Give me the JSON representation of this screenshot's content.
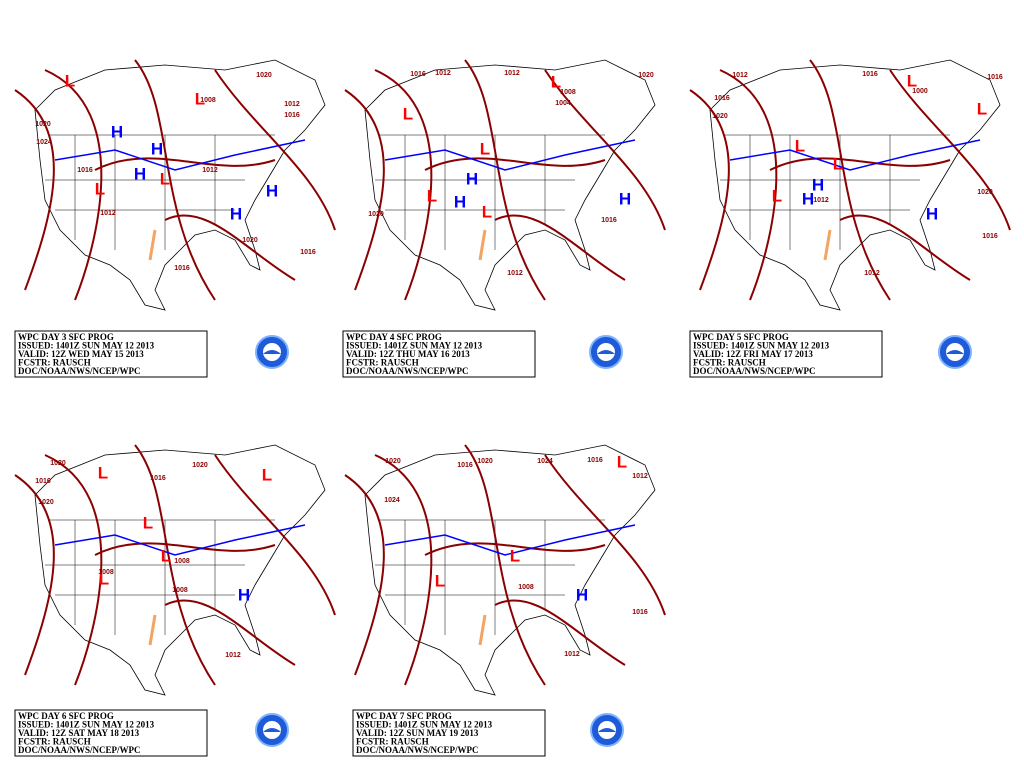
{
  "panels": [
    {
      "caption": [
        "WPC DAY 3 SFC PROG",
        "ISSUED: 1401Z SUN MAY 12 2013",
        "VALID: 12Z WED MAY 15 2013",
        "FCSTR: RAUSCH",
        "DOC/NOAA/NWS/NCEP/WPC"
      ],
      "highs": [
        "H",
        "H",
        "H",
        "H",
        "H"
      ],
      "lows": [
        "L",
        "L",
        "L",
        "L"
      ],
      "isobars": [
        "1020",
        "1020",
        "1024",
        "1016",
        "1012",
        "1012",
        "1016",
        "1008",
        "1012",
        "1020",
        "1016",
        "1016"
      ]
    },
    {
      "caption": [
        "WPC DAY 4 SFC PROG",
        "ISSUED: 1401Z SUN MAY 12 2013",
        "VALID: 12Z THU MAY 16 2013",
        "FCSTR: RAUSCH",
        "DOC/NOAA/NWS/NCEP/WPC"
      ],
      "highs": [
        "H",
        "H",
        "H"
      ],
      "lows": [
        "L",
        "L",
        "L",
        "L",
        "L"
      ],
      "isobars": [
        "1016",
        "1012",
        "1012",
        "1020",
        "1008",
        "1004",
        "1020",
        "1012",
        "1016"
      ]
    },
    {
      "caption": [
        "WPC DAY 5 SFC PROG",
        "ISSUED: 1401Z SUN MAY 12 2013",
        "VALID: 12Z FRI MAY 17 2013",
        "FCSTR: RAUSCH",
        "DOC/NOAA/NWS/NCEP/WPC"
      ],
      "highs": [
        "H",
        "H",
        "H"
      ],
      "lows": [
        "L",
        "L",
        "L",
        "L",
        "L"
      ],
      "isobars": [
        "1012",
        "1016",
        "1016",
        "1016",
        "1020",
        "1000",
        "1020",
        "1016",
        "1012",
        "1012"
      ]
    },
    {
      "caption": [
        "WPC DAY 6 SFC PROG",
        "ISSUED: 1401Z SUN MAY 12 2013",
        "VALID: 12Z SAT MAY 18 2013",
        "FCSTR: RAUSCH",
        "DOC/NOAA/NWS/NCEP/WPC"
      ],
      "highs": [
        "H"
      ],
      "lows": [
        "L",
        "L",
        "L",
        "L",
        "L"
      ],
      "isobars": [
        "1020",
        "1016",
        "1020",
        "1020",
        "1016",
        "1008",
        "1008",
        "1008",
        "1012"
      ]
    },
    {
      "caption": [
        "WPC DAY 7 SFC PROG",
        "ISSUED: 1401Z SUN MAY 12 2013",
        "VALID: 12Z SUN MAY 19 2013",
        "FCSTR: RAUSCH",
        "DOC/NOAA/NWS/NCEP/WPC"
      ],
      "highs": [
        "H"
      ],
      "lows": [
        "L",
        "L",
        "L"
      ],
      "isobars": [
        "1020",
        "1016",
        "1020",
        "1024",
        "1016",
        "1012",
        "1024",
        "1008",
        "1016",
        "1012"
      ]
    }
  ]
}
